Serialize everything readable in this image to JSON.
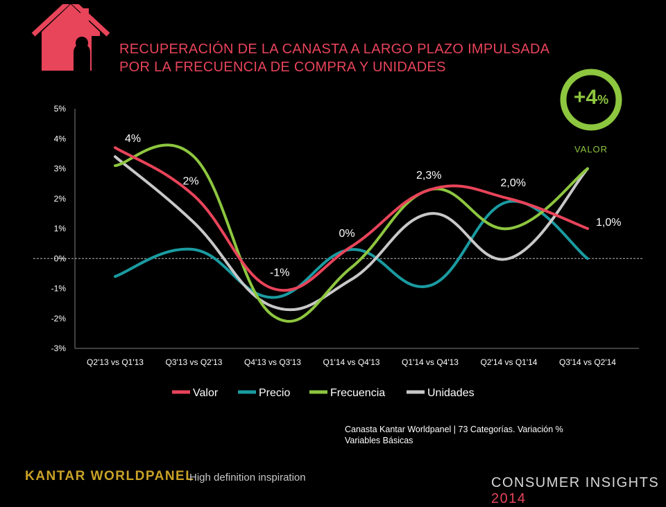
{
  "header": {
    "title": "RECUPERACIÓN DE LA CANASTA  A  LARGO PLAZO IMPULSADA\nPOR LA FRECUENCIA DE COMPRA Y UNIDADES",
    "icon": "house-icon"
  },
  "badge": {
    "value": "+4",
    "unit": "%",
    "label": "VALOR",
    "color": "#8dc63f"
  },
  "chart_data": {
    "type": "line",
    "categories": [
      "Q2'13 vs Q1'13",
      "Q3'13 vs Q2'13",
      "Q4'13 vs Q3'13",
      "Q1'14 vs Q4'13",
      "Q1'14 vs Q4'13",
      "Q2'14 vs Q1'14",
      "Q3'14 vs Q2'14"
    ],
    "y_ticks": [
      "5%",
      "4%",
      "3%",
      "2%",
      "1%",
      "0%",
      "-1%",
      "-2%",
      "-3%"
    ],
    "ylim": [
      -3,
      5
    ],
    "grid": false,
    "smooth": true,
    "legend_position": "bottom",
    "series": [
      {
        "name": "Valor",
        "color": "#e8445a",
        "values": [
          3.7,
          2.1,
          -1.0,
          0.4,
          2.3,
          2.0,
          1.0
        ]
      },
      {
        "name": "Precio",
        "color": "#1a9ba1",
        "values": [
          -0.6,
          0.3,
          -1.3,
          0.3,
          -0.9,
          1.9,
          0.0
        ]
      },
      {
        "name": "Frecuencia",
        "color": "#8dc63f",
        "values": [
          3.1,
          3.4,
          -1.9,
          -0.3,
          2.3,
          1.0,
          3.0
        ]
      },
      {
        "name": "Unidades",
        "color": "#c8c8c8",
        "values": [
          3.4,
          1.2,
          -1.6,
          -0.7,
          1.5,
          0.0,
          3.0
        ]
      }
    ],
    "data_labels": [
      {
        "text": "4%",
        "category": 0,
        "value": 3.7
      },
      {
        "text": "2%",
        "category": 1,
        "value": 2.1
      },
      {
        "text": "-1%",
        "category": 2,
        "value": -1.0
      },
      {
        "text": "0%",
        "category": 3,
        "value": 0.4
      },
      {
        "text": "2,3%",
        "category": 4,
        "value": 2.3
      },
      {
        "text": "2,0%",
        "category": 5,
        "value": 2.0
      },
      {
        "text": "1,0%",
        "category": 6,
        "value": 1.0
      }
    ]
  },
  "note": {
    "line1": "Canasta Kantar Worldpanel | 73 Categorías. Variación  %",
    "line2": "Variables Básicas"
  },
  "footer": {
    "brand": "KANTAR WORLDPANEL",
    "tagline": "High definition inspiration",
    "right_text": "CONSUMER INSIGHTS ",
    "year": "2014",
    "brand_color": "#c9a227"
  }
}
